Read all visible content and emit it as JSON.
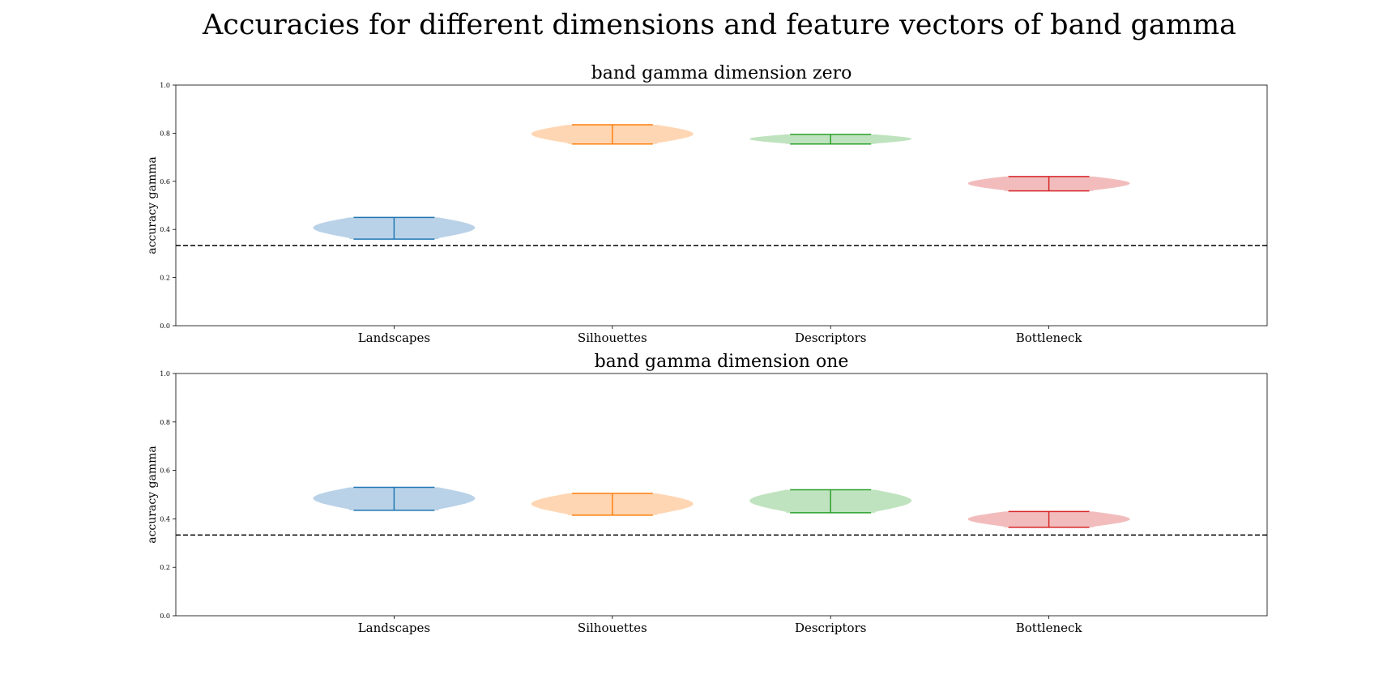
{
  "figure_title": "Accuracies for different dimensions and feature vectors of band gamma",
  "colors": {
    "Landscapes": {
      "line": "#1f77b4",
      "fill": "#bad2e8"
    },
    "Silhouettes": {
      "line": "#ff7f0e",
      "fill": "#ffd6b3"
    },
    "Descriptors": {
      "line": "#2ca02c",
      "fill": "#c0e3bf"
    },
    "Bottleneck": {
      "line": "#d62728",
      "fill": "#f2bcbd"
    },
    "baseline": "#000000"
  },
  "chart_data": [
    {
      "type": "violin",
      "title": "band gamma dimension zero",
      "xlabel": "",
      "ylabel": "accuracy gamma",
      "ylim": [
        0.0,
        1.0
      ],
      "yticks": [
        "0.0",
        "0.2",
        "0.4",
        "0.6",
        "0.8",
        "1.0"
      ],
      "categories": [
        "Landscapes",
        "Silhouettes",
        "Descriptors",
        "Bottleneck"
      ],
      "baseline": 0.333,
      "series": [
        {
          "category": "Landscapes",
          "min": 0.36,
          "max": 0.45
        },
        {
          "category": "Silhouettes",
          "min": 0.755,
          "max": 0.835
        },
        {
          "category": "Descriptors",
          "min": 0.755,
          "max": 0.795
        },
        {
          "category": "Bottleneck",
          "min": 0.56,
          "max": 0.62
        }
      ]
    },
    {
      "type": "violin",
      "title": "band gamma dimension one",
      "xlabel": "",
      "ylabel": "accuracy gamma",
      "ylim": [
        0.0,
        1.0
      ],
      "yticks": [
        "0.0",
        "0.2",
        "0.4",
        "0.6",
        "0.8",
        "1.0"
      ],
      "categories": [
        "Landscapes",
        "Silhouettes",
        "Descriptors",
        "Bottleneck"
      ],
      "baseline": 0.333,
      "series": [
        {
          "category": "Landscapes",
          "min": 0.435,
          "max": 0.53
        },
        {
          "category": "Silhouettes",
          "min": 0.415,
          "max": 0.505
        },
        {
          "category": "Descriptors",
          "min": 0.425,
          "max": 0.52
        },
        {
          "category": "Bottleneck",
          "min": 0.365,
          "max": 0.43
        }
      ]
    }
  ]
}
